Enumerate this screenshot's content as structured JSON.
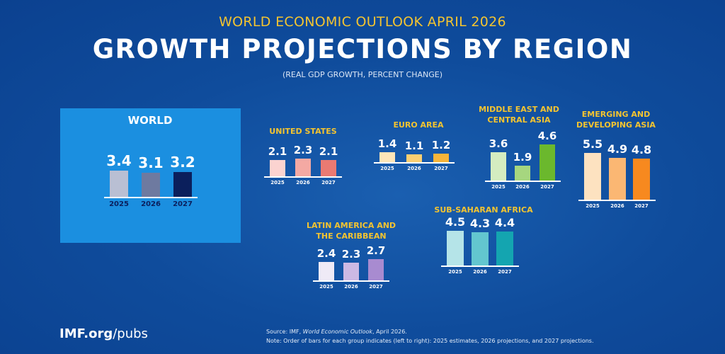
{
  "header": {
    "supertitle": "WORLD ECONOMIC OUTLOOK APRIL 2026",
    "title": "GROWTH PROJECTIONS BY REGION",
    "subtitle": "(REAL GDP GROWTH, PERCENT CHANGE)"
  },
  "footer": {
    "logo_bold": "IMF.org",
    "logo_rest": "/pubs",
    "source_prefix": "Source:  IMF, ",
    "source_title": "World Economic Outlook",
    "source_suffix": ", April 2026.",
    "note": "Note:  Order of bars for each group indicates (left to right): 2025 estimates, 2026 projections, and 2027 projections."
  },
  "chart_data": [
    {
      "type": "bar",
      "title": "WORLD",
      "categories": [
        "2025",
        "2026",
        "2027"
      ],
      "values": [
        3.4,
        3.1,
        3.2
      ],
      "colors": [
        "#b9bfd3",
        "#6e7aa0",
        "#0b1f5c"
      ]
    },
    {
      "type": "bar",
      "title": "UNITED STATES",
      "categories": [
        "2025",
        "2026",
        "2027"
      ],
      "values": [
        2.1,
        2.3,
        2.1
      ],
      "colors": [
        "#fbd3d0",
        "#f4a9a3",
        "#ea7a72"
      ]
    },
    {
      "type": "bar",
      "title": "EURO AREA",
      "categories": [
        "2025",
        "2026",
        "2027"
      ],
      "values": [
        1.4,
        1.1,
        1.2
      ],
      "colors": [
        "#fde6b8",
        "#fbcf72",
        "#f7b53a"
      ]
    },
    {
      "type": "bar",
      "title": "MIDDLE EAST AND\nCENTRAL ASIA",
      "categories": [
        "2025",
        "2026",
        "2027"
      ],
      "values": [
        3.6,
        1.9,
        4.6
      ],
      "colors": [
        "#d4ecc0",
        "#a6d67f",
        "#6bb82d"
      ]
    },
    {
      "type": "bar",
      "title": "EMERGING AND\nDEVELOPING ASIA",
      "categories": [
        "2025",
        "2026",
        "2027"
      ],
      "values": [
        5.5,
        4.9,
        4.8
      ],
      "colors": [
        "#fde2c0",
        "#fbb773",
        "#f7891f"
      ]
    },
    {
      "type": "bar",
      "title": "LATIN AMERICA AND\nTHE CARIBBEAN",
      "categories": [
        "2025",
        "2026",
        "2027"
      ],
      "values": [
        2.4,
        2.3,
        2.7
      ],
      "colors": [
        "#efeaf6",
        "#cdb9e4",
        "#a88bd0"
      ]
    },
    {
      "type": "bar",
      "title": "SUB-SAHARAN AFRICA",
      "categories": [
        "2025",
        "2026",
        "2027"
      ],
      "values": [
        4.5,
        4.3,
        4.4
      ],
      "colors": [
        "#b5e4e8",
        "#63c6cf",
        "#14a5b0"
      ]
    }
  ]
}
